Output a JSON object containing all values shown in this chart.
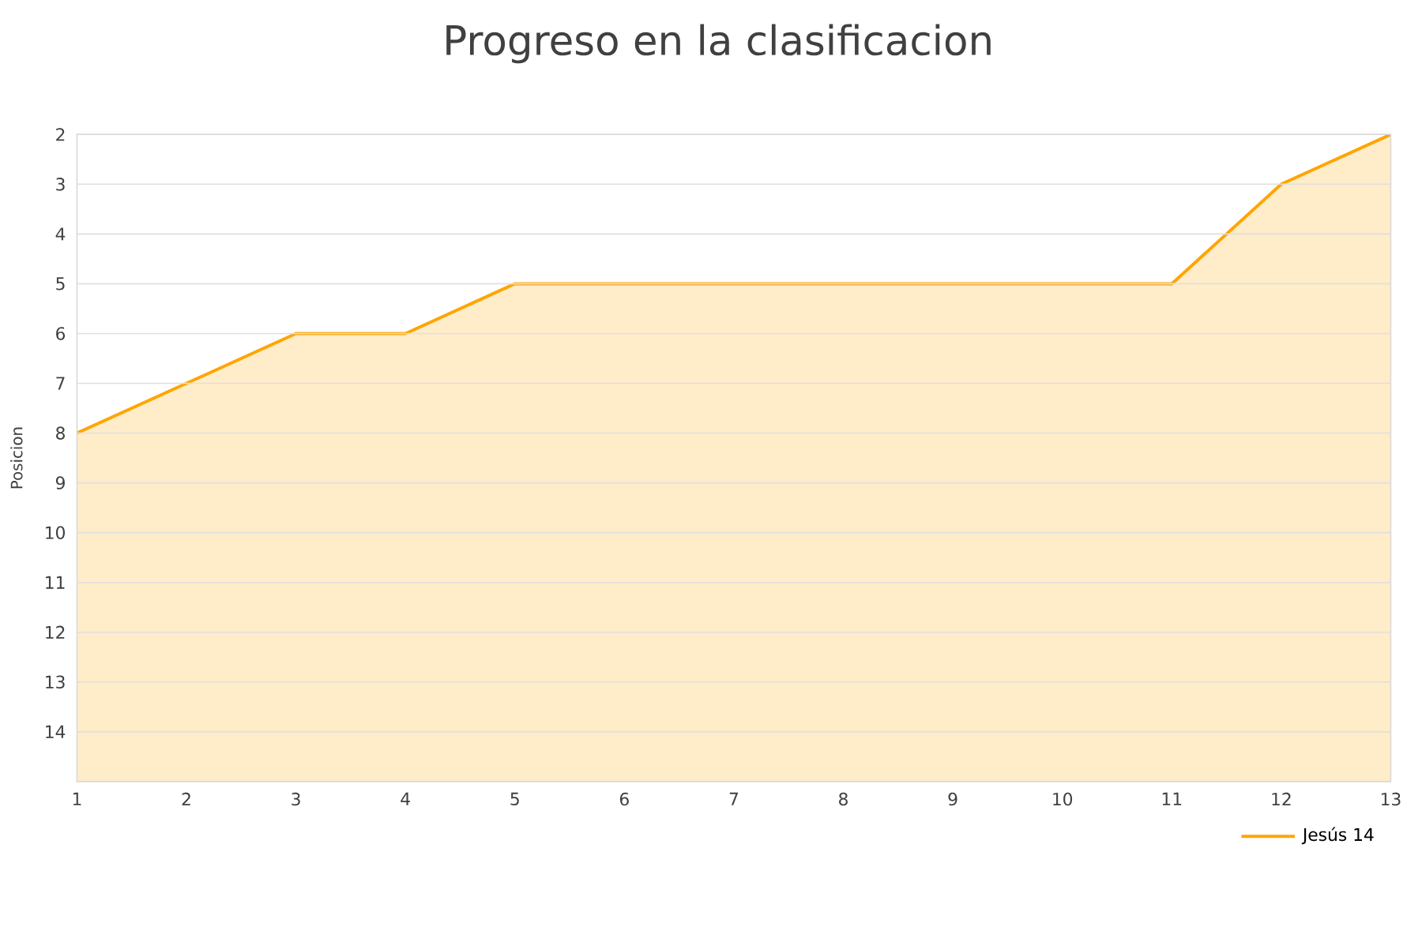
{
  "chart_data": {
    "type": "area",
    "title": "Progreso en la clasificacion",
    "ylabel": "Posicion",
    "x": [
      1,
      2,
      3,
      4,
      5,
      6,
      7,
      8,
      9,
      10,
      11,
      12,
      13
    ],
    "series": [
      {
        "name": "Jesús 14",
        "color": "#ffa500",
        "values": [
          8,
          7,
          6,
          6,
          5,
          5,
          5,
          5,
          5,
          5,
          5,
          3,
          2
        ]
      }
    ],
    "xlim": [
      1,
      13
    ],
    "xticks": [
      1,
      2,
      3,
      4,
      5,
      6,
      7,
      8,
      9,
      10,
      11,
      12,
      13
    ],
    "ylim": [
      15,
      2
    ],
    "yticks": [
      2,
      3,
      4,
      5,
      6,
      7,
      8,
      9,
      10,
      11,
      12,
      13,
      14
    ],
    "grid": "y",
    "legend": "bottom right"
  }
}
